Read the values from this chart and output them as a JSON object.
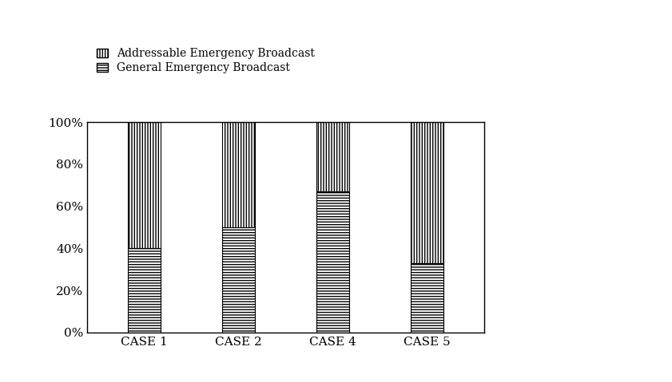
{
  "categories": [
    "CASE 1",
    "CASE 2",
    "CASE 4",
    "CASE 5"
  ],
  "addressable": [
    0.6,
    0.5,
    0.33,
    0.67
  ],
  "general": [
    0.4,
    0.5,
    0.67,
    0.33
  ],
  "legend_addressable": "Addressable Emergency Broadcast",
  "legend_general": "General Emergency Broadcast",
  "ylim": [
    0,
    1
  ],
  "ytick_labels": [
    "0%",
    "20%",
    "40%",
    "60%",
    "80%",
    "100%"
  ],
  "ytick_values": [
    0,
    0.2,
    0.4,
    0.6,
    0.8,
    1.0
  ],
  "bar_width": 0.35,
  "background_color": "#ffffff",
  "edge_color": "#000000",
  "fig_width": 8.41,
  "fig_height": 4.79
}
